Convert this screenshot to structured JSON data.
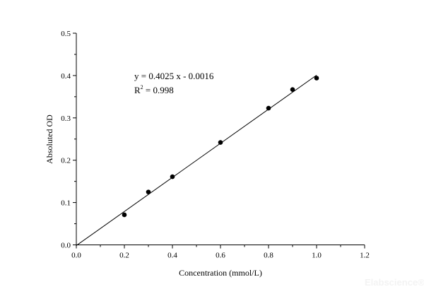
{
  "chart_data": {
    "type": "scatter",
    "title": "",
    "xlabel": "Concentration (mmol/L)",
    "ylabel": "Absoluted OD",
    "xlim": [
      0.0,
      1.2
    ],
    "ylim": [
      0.0,
      0.5
    ],
    "xticks": [
      "0.0",
      "0.2",
      "0.4",
      "0.6",
      "0.8",
      "1.0",
      "1.2"
    ],
    "yticks": [
      "0.0",
      "0.1",
      "0.2",
      "0.3",
      "0.4",
      "0.5"
    ],
    "grid": false,
    "legend": "none",
    "points": {
      "x": [
        0.2,
        0.3,
        0.4,
        0.6,
        0.8,
        0.9,
        1.0
      ],
      "y": [
        0.071,
        0.125,
        0.161,
        0.242,
        0.323,
        0.367,
        0.394
      ]
    },
    "fit_line": {
      "slope": 0.4025,
      "intercept": -0.0016,
      "x_range": [
        0.0,
        1.0
      ]
    },
    "annotations": {
      "equation": "y = 0.4025 x - 0.0016",
      "r2_prefix": "R",
      "r2_sup": "2",
      "r2_value": " = 0.998"
    },
    "watermark": "Elabscience®",
    "colors": {
      "points": "#000000",
      "line": "#000000",
      "axes": "#000000"
    }
  }
}
